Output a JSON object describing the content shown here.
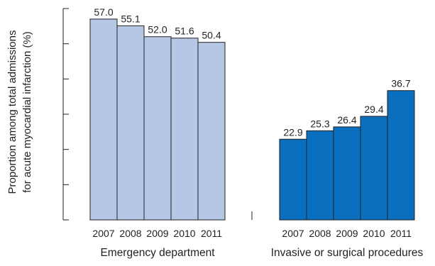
{
  "chart_data": {
    "type": "bar",
    "ylabel": "Proportion among total admissions for acute myocardial infarction (%)",
    "ylabel_lines": [
      "Proportion among total admissions",
      "for acute myocardial infarction (%)"
    ],
    "ylim": [
      0,
      60
    ],
    "yticks": [
      0,
      10,
      20,
      30,
      40,
      50,
      60
    ],
    "ytick_labels_shown": false,
    "grid": false,
    "legend": "none",
    "groups": [
      {
        "name": "Emergency department",
        "categories": [
          "2007",
          "2008",
          "2009",
          "2010",
          "2011"
        ],
        "values": [
          57.0,
          55.1,
          52.0,
          51.6,
          50.4
        ],
        "value_labels": [
          "57.0",
          "55.1",
          "52.0",
          "51.6",
          "50.4"
        ],
        "color": "#b6c7e6"
      },
      {
        "name": "Invasive or surgical procedures",
        "categories": [
          "2007",
          "2008",
          "2009",
          "2010",
          "2011"
        ],
        "values": [
          22.9,
          25.3,
          26.4,
          29.4,
          36.7
        ],
        "value_labels": [
          "22.9",
          "25.3",
          "26.4",
          "29.4",
          "36.7"
        ],
        "color": "#0a6fbe"
      }
    ]
  }
}
